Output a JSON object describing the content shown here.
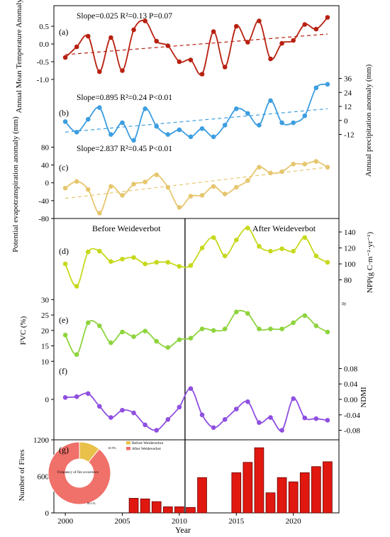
{
  "chart_data": {
    "type": "line",
    "x_axis": {
      "label": "Year",
      "ticks": [
        2000,
        2005,
        2010,
        2015,
        2020
      ],
      "range": [
        1999,
        2024
      ]
    },
    "years": [
      2000,
      2001,
      2002,
      2003,
      2004,
      2005,
      2006,
      2007,
      2008,
      2009,
      2010,
      2011,
      2012,
      2013,
      2014,
      2015,
      2016,
      2017,
      2018,
      2019,
      2020,
      2021,
      2022,
      2023
    ],
    "panel_a": {
      "tag": "(a)",
      "annotation": "Slope=0.025 R²=0.13 P=0.07",
      "ylabel": "Annual Mean Temperature Anomaly (°C)",
      "ylim": [
        -1.2,
        1.0
      ],
      "ticks": [
        -1.0,
        -0.5,
        0.0,
        0.5
      ],
      "tick_labels": [
        "-1.0",
        "-0.5",
        "0.0",
        "0.5"
      ],
      "color": "#b82010",
      "values": [
        -0.38,
        -0.08,
        0.22,
        -0.78,
        0.18,
        -0.75,
        0.4,
        0.65,
        0.08,
        -0.05,
        -0.5,
        -0.45,
        -0.85,
        0.35,
        -0.65,
        0.5,
        0.05,
        0.65,
        -0.42,
        0.02,
        0.1,
        0.55,
        0.42,
        0.75
      ],
      "trend": [
        -0.3,
        0.28
      ]
    },
    "panel_b": {
      "tag": "(b)",
      "annotation": "Slope=0.895 R²=0.24 P<0.01",
      "ylabel": "Annual precipitation anomaly (mm)",
      "ylim": [
        -22,
        40
      ],
      "ticks": [
        36,
        24,
        12,
        0,
        -12
      ],
      "tick_labels": [
        "36",
        "24",
        "12",
        "0",
        "-12"
      ],
      "color": "#3d9ee0",
      "values": [
        -1,
        -10,
        1,
        11,
        -12,
        -2,
        -17,
        10,
        -5,
        -12,
        -8,
        -14,
        -7,
        -14,
        -4,
        10,
        6,
        -4,
        17,
        -2,
        -2,
        4,
        28,
        31
      ],
      "trend": [
        -10,
        10
      ]
    },
    "panel_c": {
      "tag": "(c)",
      "annotation": "Slope=2.837 R²=0.45 P<0.01",
      "ylabel": "Potential evapotranspiration anomaly (mm)",
      "ylim": [
        -80,
        95
      ],
      "ticks": [
        80,
        40,
        0,
        -40,
        -80
      ],
      "tick_labels": [
        "80",
        "40",
        "0",
        "-40",
        "-80"
      ],
      "color": "#e6c66e",
      "values": [
        -12,
        3,
        -15,
        -68,
        -8,
        -28,
        -3,
        2,
        18,
        -10,
        -55,
        -30,
        -28,
        -8,
        -25,
        -10,
        5,
        35,
        22,
        25,
        42,
        42,
        48,
        35
      ],
      "trend": [
        -35,
        35
      ]
    },
    "panel_d": {
      "tag": "(d)",
      "ylabel": "NPP(g C·m⁻²·yr⁻¹)",
      "ylim": [
        68,
        148
      ],
      "ticks": [
        140,
        120,
        100,
        80
      ],
      "tick_labels": [
        "140",
        "120",
        "100",
        "80"
      ],
      "color": "#c6d91c",
      "values": [
        100,
        72,
        115,
        116,
        103,
        106,
        108,
        100,
        102,
        102,
        97,
        98,
        120,
        133,
        110,
        130,
        145,
        122,
        116,
        119,
        116,
        133,
        110,
        102
      ]
    },
    "panel_e": {
      "tag": "(e)",
      "ylabel": "FVC (%)",
      "ylim": [
        8,
        31
      ],
      "ticks": [
        30,
        25,
        20,
        15,
        10
      ],
      "tick_labels": [
        "30",
        "25",
        "20",
        "15",
        "10"
      ],
      "color": "#8ed43e",
      "values": [
        18.5,
        12.2,
        22.5,
        21.5,
        16.0,
        19.5,
        18.0,
        19.8,
        16.5,
        14.5,
        17.0,
        17.5,
        20.5,
        20.0,
        20.5,
        26.0,
        25.5,
        20.5,
        20.5,
        20.5,
        22.5,
        24.8,
        21.5,
        19.5
      ]
    },
    "panel_f": {
      "tag": "(f)",
      "ylabel": "NDMI",
      "ylim": [
        -0.09,
        0.09
      ],
      "ticks": [
        0.08,
        0.04,
        0.0,
        -0.04,
        -0.08
      ],
      "tick_labels": [
        "0.08",
        "0.04",
        "0.00",
        "-0.04",
        "-0.08"
      ],
      "color": "#8f4fe0",
      "values": [
        0.005,
        0.007,
        0.015,
        -0.018,
        -0.047,
        -0.028,
        -0.035,
        -0.066,
        -0.08,
        -0.052,
        -0.02,
        0.028,
        -0.04,
        -0.073,
        -0.052,
        -0.025,
        -0.006,
        -0.06,
        -0.047,
        -0.08,
        0.002,
        -0.048,
        -0.05,
        -0.054
      ],
      "left_axis_ticks": [
        0
      ],
      "left_axis_tick_labels": [
        "0"
      ]
    },
    "panel_g": {
      "tag": "(g)",
      "type": "bar",
      "ylabel": "Number of Fires",
      "ylim": [
        0,
        1200
      ],
      "ticks": [
        0,
        600,
        1200
      ],
      "tick_labels": [
        "0",
        "600",
        "1200"
      ],
      "color": "#e01810",
      "bar_years": [
        2006,
        2007,
        2008,
        2009,
        2010,
        2011,
        2012,
        2015,
        2016,
        2017,
        2018,
        2019,
        2020,
        2021,
        2022,
        2023
      ],
      "values": [
        240,
        230,
        185,
        100,
        100,
        90,
        580,
        660,
        830,
        1070,
        330,
        580,
        510,
        660,
        760,
        840
      ]
    },
    "donut": {
      "center_label": "Frequency of fire occurrence",
      "slices": [
        {
          "label": "Before Weideverbot",
          "value": 10.9,
          "display": "10.9%",
          "color": "#e8c04a"
        },
        {
          "label": "After Weideverbot",
          "value": 89.1,
          "display": "89.1%",
          "color": "#f0706a"
        }
      ]
    },
    "period_labels": {
      "before": "Before Weideverbot",
      "after": "After Weideverbot"
    },
    "divider_year": 2010.5,
    "yaxis_labels": {
      "right_30": "30"
    }
  }
}
